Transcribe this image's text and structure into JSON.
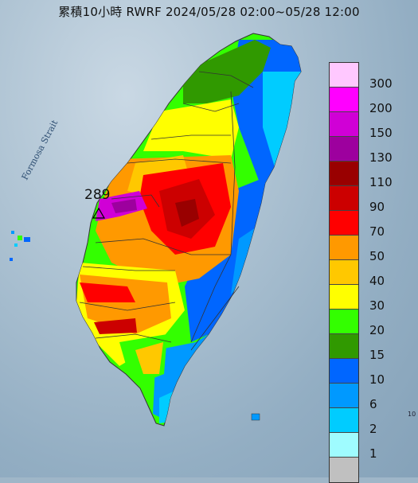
{
  "title": "累積10小時 RWRF 2024/05/28 02:00~05/28 12:00",
  "strait_label": "Formosa Strait",
  "max_marker": {
    "value": "289",
    "icon": "triangle-icon"
  },
  "corner_text": "10",
  "legend": {
    "items": [
      {
        "label": "300",
        "color": "#ffc8ff"
      },
      {
        "label": "200",
        "color": "#ff00ff"
      },
      {
        "label": "150",
        "color": "#d000d6"
      },
      {
        "label": "130",
        "color": "#9d009e"
      },
      {
        "label": "110",
        "color": "#990000"
      },
      {
        "label": "90",
        "color": "#cc0000"
      },
      {
        "label": "70",
        "color": "#ff0000"
      },
      {
        "label": "50",
        "color": "#ff9900"
      },
      {
        "label": "40",
        "color": "#ffc800"
      },
      {
        "label": "30",
        "color": "#ffff00"
      },
      {
        "label": "20",
        "color": "#33ff00"
      },
      {
        "label": "15",
        "color": "#309900"
      },
      {
        "label": "10",
        "color": "#0066ff"
      },
      {
        "label": "6",
        "color": "#0099ff"
      },
      {
        "label": "2",
        "color": "#00ccff"
      },
      {
        "label": "1",
        "color": "#9ffcff"
      },
      {
        "label": "",
        "color": "#c0c0c0"
      }
    ]
  }
}
